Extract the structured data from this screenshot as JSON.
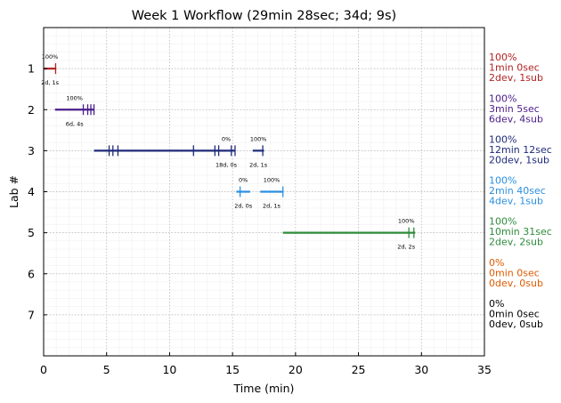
{
  "chart_data": {
    "type": "timeline",
    "title": "Week 1 Workflow (29min 28sec; 34d; 9s)",
    "xlabel": "Time (min)",
    "ylabel": "Lab #",
    "xlim": [
      0,
      35
    ],
    "ylim": [
      8,
      0
    ],
    "xticks": [
      0,
      5,
      10,
      15,
      20,
      25,
      30,
      35
    ],
    "yticks": [
      1,
      2,
      3,
      4,
      5,
      6,
      7
    ],
    "grid": true,
    "labs": [
      {
        "lab": 1,
        "color": "#b22222",
        "segments": [
          {
            "start": 0.0,
            "end": 1.0,
            "pct_label": "100%",
            "dev_label": "2d, 1s"
          }
        ],
        "tick_marks": [
          0.95
        ],
        "side_lines": [
          "100%",
          "1min 0sec",
          "2dev, 1sub"
        ]
      },
      {
        "lab": 2,
        "color": "#4b1c8c",
        "segments": [
          {
            "start": 0.9,
            "end": 4.0,
            "pct_label": "100%",
            "dev_label": "6d, 4s"
          }
        ],
        "tick_marks": [
          3.15,
          3.5,
          3.75,
          4.0
        ],
        "side_lines": [
          "100%",
          "3min 5sec",
          "6dev, 4sub"
        ]
      },
      {
        "lab": 3,
        "color": "#1f2a7a",
        "segments": [
          {
            "start": 4.0,
            "end": 15.2,
            "pct_label": "0%",
            "dev_label": "18d, 0s"
          },
          {
            "start": 16.6,
            "end": 17.5,
            "pct_label": "100%",
            "dev_label": "2d, 1s"
          }
        ],
        "tick_marks": [
          5.2,
          5.5,
          5.9,
          11.9,
          13.6,
          13.9,
          14.9,
          15.2,
          17.4
        ],
        "side_lines": [
          "100%",
          "12min 12sec",
          "20dev, 1sub"
        ]
      },
      {
        "lab": 4,
        "color": "#2a8fe0",
        "segments": [
          {
            "start": 15.3,
            "end": 16.4,
            "pct_label": "0%",
            "dev_label": "2d, 0s"
          },
          {
            "start": 17.2,
            "end": 19.0,
            "pct_label": "100%",
            "dev_label": "2d, 1s"
          }
        ],
        "tick_marks": [
          15.6,
          19.0
        ],
        "side_lines": [
          "100%",
          "2min 40sec",
          "4dev, 1sub"
        ]
      },
      {
        "lab": 5,
        "color": "#2e8b3a",
        "segments": [
          {
            "start": 19.0,
            "end": 29.5,
            "pct_label": "100%",
            "dev_label": "2d, 2s"
          }
        ],
        "tick_marks": [
          29.0,
          29.4
        ],
        "side_lines": [
          "100%",
          "10min 31sec",
          "2dev, 2sub"
        ]
      },
      {
        "lab": 6,
        "color": "#e05a00",
        "segments": [],
        "tick_marks": [],
        "side_lines": [
          "0%",
          "0min 0sec",
          "0dev, 0sub"
        ]
      },
      {
        "lab": 7,
        "color": "#000000",
        "segments": [],
        "tick_marks": [],
        "side_lines": [
          "0%",
          "0min 0sec",
          "0dev, 0sub"
        ]
      }
    ]
  }
}
